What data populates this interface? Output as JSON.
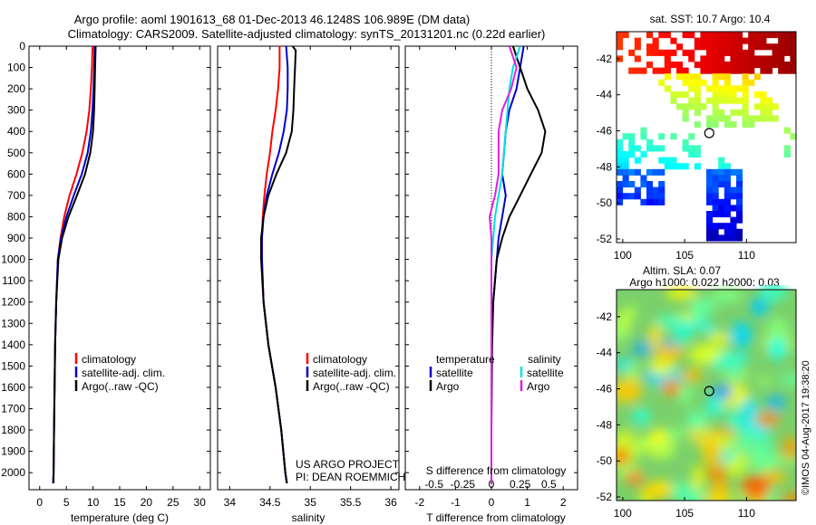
{
  "header": {
    "title1": "Argo profile: aoml 1901613_68 01-Dec-2013 46.1248S 106.989E (DM data)",
    "title2": "Climatology: CARS2009. Satellite-adjusted climatology: synTS_20131201.nc (0.22d earlier)"
  },
  "credits": {
    "project": "US ARGO PROJECT",
    "pi": "PI: DEAN ROEMMICH",
    "stamp": "©IMOS 04-Aug-2017 19:38:20"
  },
  "colors": {
    "climatology": "#ff0000",
    "satellite": "#0000cc",
    "argo": "#000000",
    "s_satellite": "#00e0e0",
    "s_argo": "#e020e0",
    "marker": "#000000"
  },
  "chart_data": [
    {
      "type": "line",
      "xlabel": "temperature (deg C)",
      "ylabel": "",
      "xlim": [
        -2,
        32
      ],
      "ylim": [
        2080,
        0
      ],
      "xticks": [
        "0",
        "5",
        "10",
        "15",
        "20",
        "25",
        "30"
      ],
      "yticks": [
        "0",
        "100",
        "200",
        "300",
        "400",
        "500",
        "600",
        "700",
        "800",
        "900",
        "1000",
        "1100",
        "1200",
        "1300",
        "1400",
        "1500",
        "1600",
        "1700",
        "1800",
        "1900",
        "2000"
      ],
      "legend": [
        "climatology",
        "satellite-adj. clim.",
        "Argo(..raw -QC)"
      ],
      "legend_position": "lower-right",
      "series": [
        {
          "name": "climatology",
          "color": "#ff0000",
          "x": [
            9.9,
            9.8,
            9.6,
            9.3,
            8.8,
            8.0,
            6.9,
            5.6,
            4.6,
            3.9,
            3.4,
            3.1,
            2.9,
            2.8,
            2.7,
            2.6,
            2.5
          ],
          "y": [
            0,
            100,
            200,
            300,
            400,
            500,
            600,
            700,
            800,
            900,
            1000,
            1200,
            1400,
            1600,
            1800,
            2000,
            2050
          ]
        },
        {
          "name": "satellite-adj. clim.",
          "color": "#0000cc",
          "x": [
            10.3,
            10.2,
            10.1,
            9.9,
            9.6,
            9.0,
            7.9,
            6.4,
            5.0,
            4.0,
            3.4,
            3.1,
            2.9,
            2.8,
            2.7,
            2.6,
            2.5
          ],
          "y": [
            0,
            100,
            200,
            300,
            400,
            500,
            600,
            700,
            800,
            900,
            1000,
            1200,
            1400,
            1600,
            1800,
            2000,
            2050
          ]
        },
        {
          "name": "Argo(..raw -QC)",
          "color": "#000000",
          "x": [
            10.5,
            10.4,
            10.3,
            10.2,
            10.0,
            9.5,
            8.5,
            7.0,
            5.4,
            4.2,
            3.5,
            3.1,
            2.9,
            2.8,
            2.7,
            2.6,
            2.6
          ],
          "y": [
            0,
            100,
            200,
            300,
            400,
            500,
            600,
            700,
            800,
            900,
            1000,
            1200,
            1400,
            1600,
            1800,
            2000,
            2050
          ]
        }
      ]
    },
    {
      "type": "line",
      "xlabel": "salinity",
      "ylabel": "",
      "xlim": [
        33.85,
        36.1
      ],
      "ylim": [
        2080,
        0
      ],
      "xticks": [
        "34",
        "34.5",
        "35",
        "35.5",
        "36"
      ],
      "legend": [
        "climatology",
        "satellite-adj. clim.",
        "Argo(..raw -QC)"
      ],
      "legend_position": "lower-right",
      "series": [
        {
          "name": "climatology",
          "color": "#ff0000",
          "x": [
            34.62,
            34.62,
            34.6,
            34.57,
            34.53,
            34.5,
            34.46,
            34.43,
            34.41,
            34.4,
            34.4,
            34.42,
            34.48,
            34.57,
            34.64,
            34.69,
            34.71
          ],
          "y": [
            0,
            100,
            200,
            300,
            400,
            500,
            600,
            700,
            800,
            900,
            1000,
            1200,
            1400,
            1600,
            1800,
            2000,
            2050
          ]
        },
        {
          "name": "satellite-adj. clim.",
          "color": "#0000cc",
          "x": [
            34.7,
            34.72,
            34.72,
            34.71,
            34.67,
            34.61,
            34.53,
            34.46,
            34.42,
            34.4,
            34.4,
            34.42,
            34.48,
            34.57,
            34.64,
            34.69,
            34.71
          ],
          "y": [
            0,
            100,
            200,
            300,
            400,
            500,
            600,
            700,
            800,
            900,
            1000,
            1200,
            1400,
            1600,
            1800,
            2000,
            2050
          ]
        },
        {
          "name": "Argo(..raw -QC)",
          "color": "#000000",
          "x": [
            34.78,
            34.82,
            34.8,
            34.79,
            34.77,
            34.7,
            34.58,
            34.48,
            34.42,
            34.39,
            34.39,
            34.42,
            34.48,
            34.57,
            34.64,
            34.69,
            34.71
          ],
          "y": [
            0,
            20,
            200,
            300,
            400,
            500,
            600,
            700,
            800,
            900,
            1000,
            1200,
            1400,
            1600,
            1800,
            2000,
            2050
          ]
        }
      ]
    },
    {
      "type": "line",
      "xlabel": "T difference from climatology",
      "top_label": "S difference from climatology",
      "xlim": [
        -2.4,
        2.4
      ],
      "ylim": [
        2080,
        0
      ],
      "xticks": [
        "-2",
        "-1",
        "0",
        "1",
        "2"
      ],
      "s_ticks": [
        "-0.5",
        "-0.25",
        "0",
        "0.25",
        "0.5"
      ],
      "legend_groups": [
        "temperature",
        "salinity"
      ],
      "legend": [
        "satellite",
        "Argo",
        "satellite",
        "Argo"
      ],
      "legend_position": "lower-center",
      "series": [
        {
          "name": "satellite",
          "color": "#0000cc",
          "x": [
            0.9,
            0.8,
            0.7,
            0.5,
            0.4,
            0.35,
            0.3,
            0.4,
            0.3,
            0.2,
            0.15,
            0.05,
            0.0,
            0.0,
            0.0,
            0.0
          ],
          "y": [
            0,
            100,
            200,
            300,
            400,
            500,
            600,
            700,
            800,
            900,
            1000,
            1200,
            1400,
            1600,
            1800,
            2050
          ]
        },
        {
          "name": "Argo",
          "color": "#000000",
          "x": [
            0.6,
            0.8,
            1.0,
            1.3,
            1.5,
            1.4,
            1.1,
            0.8,
            0.5,
            0.3,
            0.15,
            0.05,
            0.02,
            0.01,
            0.0,
            0.0
          ],
          "y": [
            0,
            100,
            200,
            300,
            400,
            500,
            600,
            700,
            800,
            900,
            1000,
            1200,
            1400,
            1600,
            1800,
            2050
          ]
        },
        {
          "name": "satellite",
          "color": "#00e0e0",
          "x": [
            0.8,
            0.6,
            0.5,
            0.45,
            0.4,
            0.35,
            0.3,
            0.2,
            0.1,
            0.05,
            0.0,
            0.0,
            0.0,
            0.0,
            0.0,
            0.0
          ],
          "y": [
            0,
            100,
            200,
            300,
            400,
            500,
            600,
            700,
            800,
            900,
            1000,
            1200,
            1400,
            1600,
            1800,
            2050
          ]
        },
        {
          "name": "Argo",
          "color": "#e020e0",
          "x": [
            0.5,
            0.7,
            0.55,
            0.3,
            0.2,
            0.2,
            0.2,
            0.1,
            -0.05,
            0.0,
            0.0,
            0.0,
            0.0,
            0.0,
            0.0,
            0.0
          ],
          "y": [
            0,
            100,
            200,
            300,
            400,
            500,
            600,
            700,
            800,
            900,
            1000,
            1200,
            1400,
            1600,
            1800,
            2050
          ]
        }
      ]
    },
    {
      "type": "heatmap",
      "title": "sat. SST: 10.7  Argo: 10.4",
      "xlim": [
        99.5,
        114
      ],
      "ylim": [
        -52.2,
        -40.5
      ],
      "xticks": [
        "100",
        "105",
        "110"
      ],
      "yticks": [
        "-42",
        "-44",
        "-46",
        "-48",
        "-50",
        "-52"
      ],
      "marker": [
        106.989,
        -46.1248
      ]
    },
    {
      "type": "heatmap",
      "title": "Altim. SLA: 0.07",
      "subtitle": "Argo h1000: 0.022  h2000: 0.03",
      "xlim": [
        99.5,
        114
      ],
      "ylim": [
        -52.2,
        -40.5
      ],
      "xticks": [
        "100",
        "105",
        "110"
      ],
      "yticks": [
        "-42",
        "-44",
        "-46",
        "-48",
        "-50",
        "-52"
      ],
      "marker": [
        106.989,
        -46.1248
      ]
    }
  ]
}
